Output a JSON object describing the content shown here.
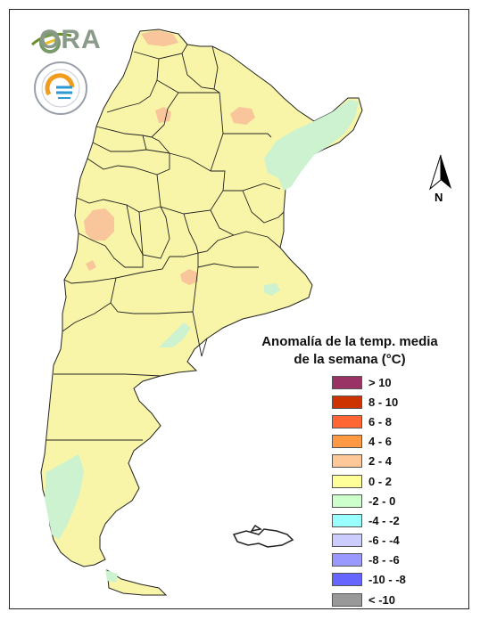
{
  "map": {
    "legend": {
      "title_line1": "Anomalía de la temp. media",
      "title_line2": "de la semana (°C)",
      "items": [
        {
          "label": "> 10",
          "color": "#993366"
        },
        {
          "label": "8 - 10",
          "color": "#cc3300"
        },
        {
          "label": "6 - 8",
          "color": "#ff6633"
        },
        {
          "label": "4 - 6",
          "color": "#ff9944"
        },
        {
          "label": "2 - 4",
          "color": "#ffc899"
        },
        {
          "label": "0 - 2",
          "color": "#ffff99"
        },
        {
          "label": "-2 - 0",
          "color": "#ccffcc"
        },
        {
          "label": "-4 - -2",
          "color": "#99ffff"
        },
        {
          "label": "-6 - -4",
          "color": "#ccccff"
        },
        {
          "label": "-8 - -6",
          "color": "#9999ff"
        },
        {
          "label": "-10 - -8",
          "color": "#6666ff"
        },
        {
          "label": "< -10",
          "color": "#999999"
        }
      ]
    },
    "north_label": "N",
    "logo_text": "ORA",
    "colors": {
      "base": "#f8f5a8",
      "warm": "#f9c59a",
      "cool": "#cdf2cf",
      "border": "#222222"
    }
  }
}
